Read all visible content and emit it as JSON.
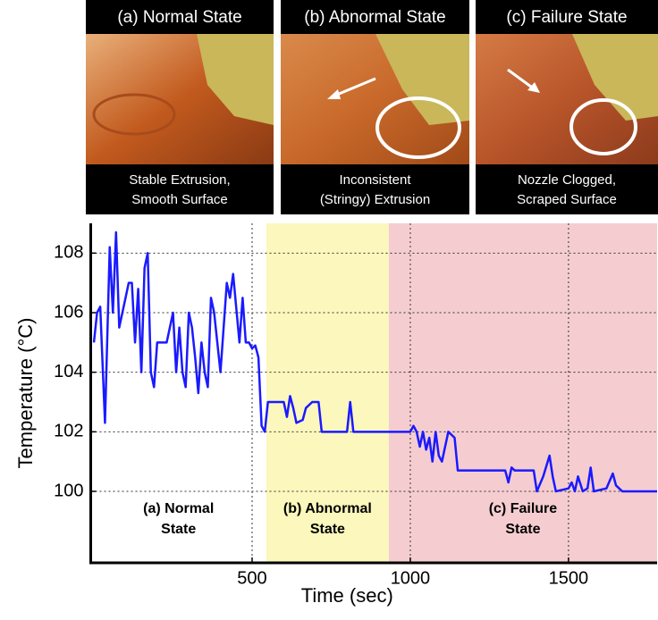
{
  "panels": [
    {
      "header": "(a) Normal State",
      "caption": [
        "Stable Extrusion,",
        "Smooth Surface"
      ]
    },
    {
      "header": "(b) Abnormal State",
      "caption": [
        "Inconsistent",
        "(Stringy) Extrusion"
      ]
    },
    {
      "header": "(c) Failure State",
      "caption": [
        "Nozzle Clogged,",
        "Scraped Surface"
      ]
    }
  ],
  "chart_data": {
    "type": "line",
    "x_label": "Time (sec)",
    "y_label": "Temperature (°C)",
    "xlim": [
      -10,
      1780
    ],
    "ylim": [
      97.6,
      109
    ],
    "xticks": [
      500,
      1000,
      1500
    ],
    "yticks": [
      100,
      102,
      104,
      106,
      108
    ],
    "grid": true,
    "regions": [
      {
        "label": [
          "(a) Normal",
          "State"
        ],
        "xrange": [
          -10,
          545
        ],
        "color": "#ffffff"
      },
      {
        "label": [
          "(b) Abnormal",
          "State"
        ],
        "xrange": [
          545,
          932
        ],
        "color": "#fbf7bd"
      },
      {
        "label": [
          "(c) Failure",
          "State"
        ],
        "xrange": [
          932,
          1780
        ],
        "color": "#f5cdd0"
      }
    ],
    "series": [
      {
        "color": "#1a1aff",
        "x": [
          0,
          10,
          20,
          35,
          50,
          60,
          70,
          80,
          90,
          100,
          110,
          120,
          130,
          140,
          150,
          160,
          170,
          180,
          190,
          200,
          210,
          230,
          250,
          260,
          270,
          280,
          290,
          300,
          310,
          320,
          330,
          340,
          350,
          360,
          370,
          380,
          390,
          400,
          420,
          430,
          440,
          460,
          470,
          480,
          490,
          500,
          510,
          520,
          530,
          540,
          550,
          580,
          600,
          610,
          620,
          630,
          640,
          660,
          670,
          690,
          710,
          720,
          800,
          810,
          820,
          1000,
          1010,
          1020,
          1030,
          1040,
          1050,
          1060,
          1070,
          1080,
          1090,
          1100,
          1120,
          1140,
          1150,
          1300,
          1310,
          1320,
          1330,
          1390,
          1400,
          1420,
          1440,
          1450,
          1460,
          1500,
          1510,
          1520,
          1530,
          1545,
          1560,
          1570,
          1580,
          1620,
          1640,
          1650,
          1660,
          1670,
          1780
        ],
        "values": [
          105,
          106,
          106.2,
          102.3,
          108.2,
          106,
          108.7,
          105.5,
          106,
          106.5,
          107,
          107,
          105,
          106.8,
          104,
          107.5,
          108,
          104,
          103.5,
          105,
          105,
          105,
          106,
          104,
          105.5,
          104,
          103.5,
          106,
          105.5,
          104.5,
          103.3,
          105,
          104,
          103.5,
          106.5,
          106,
          105,
          104,
          107,
          106.5,
          107.3,
          105,
          106.5,
          105,
          105,
          104.8,
          104.9,
          104.5,
          102.2,
          102,
          103,
          103,
          103,
          102.5,
          103.2,
          102.8,
          102.3,
          102.4,
          102.8,
          103,
          103,
          102,
          102,
          103,
          102,
          102,
          102.2,
          102,
          101.5,
          102,
          101.4,
          101.8,
          101,
          102,
          101.2,
          101,
          102,
          101.8,
          100.7,
          100.7,
          100.3,
          100.8,
          100.7,
          100.7,
          100,
          100.5,
          101.2,
          100.5,
          100,
          100.1,
          100.3,
          100,
          100.5,
          100,
          100.1,
          100.8,
          100,
          100.1,
          100.6,
          100.2,
          100.1,
          100,
          100
        ]
      }
    ]
  }
}
